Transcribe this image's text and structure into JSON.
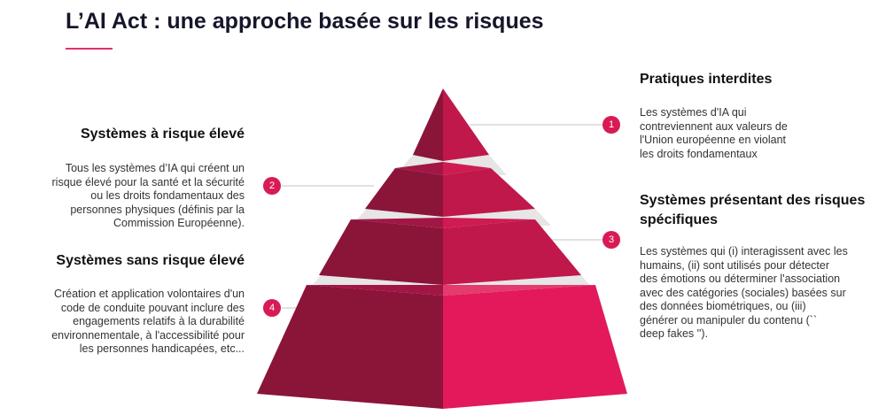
{
  "title": "L’AI Act : une approche basée sur les risques",
  "levels": [
    {
      "number": "1",
      "heading": "Pratiques interdites",
      "description": [
        "Les systèmes d'IA qui",
        "contreviennent aux valeurs de",
        "l'Union européenne en violant",
        "les droits fondamentaux"
      ]
    },
    {
      "number": "2",
      "heading": "Systèmes à risque élevé",
      "description": [
        "Tous les systèmes d’IA qui créent un",
        "risque élevé pour la santé et la sécurité",
        "ou les droits fondamentaux des",
        "personnes physiques (définis par la",
        "Commission Européenne)."
      ]
    },
    {
      "number": "3",
      "heading_lines": [
        "Systèmes présentant des risques",
        "spécifiques"
      ],
      "description": [
        "Les systèmes qui (i) interagissent avec les",
        "humains, (ii) sont utilisés pour détecter",
        "des émotions ou déterminer l'association",
        "avec des catégories (sociales) basées sur",
        "des données biométriques, ou (iii)",
        "générer ou manipuler du contenu (``",
        "deep fakes '')."
      ]
    },
    {
      "number": "4",
      "heading": "Systèmes sans risque élevé",
      "description": [
        "Création et application volontaires d'un",
        "code de conduite pouvant inclure des",
        "engagements relatifs à la durabilité",
        "environnementale, à l'accessibilité pour",
        "les personnes handicapées, etc..."
      ]
    }
  ],
  "colors": {
    "accent": "#e0336a",
    "tier_dark": "#8b1439",
    "tier_light": "#c0184a",
    "tier_base_light": "#e3195b",
    "band": "#e5e5e5",
    "badge": "#d81b55",
    "connector": "#cfcfcf"
  }
}
